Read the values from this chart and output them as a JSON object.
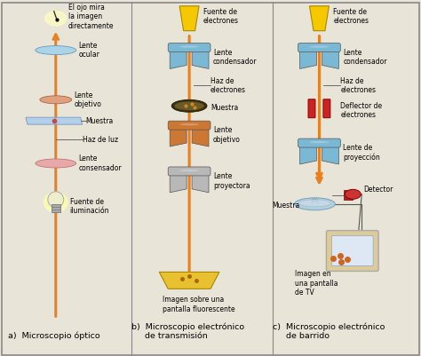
{
  "bg_color": "#e8e4d8",
  "orange": "#e88020",
  "blue_lens": "#7ab8d4",
  "blue_lens_dark": "#5599bb",
  "pink_lens": "#e8a0a0",
  "gray_lens": "#b8b8b8",
  "yellow_source": "#f5c800",
  "red_deflector": "#cc2222",
  "orange_lens": "#cc7733",
  "label_a": "a)  Microscopio óptico",
  "label_b": "b)  Microscopio electrónico\n     de transmisión",
  "label_c": "c)  Microscopio electrónico\n     de barrido",
  "col_a_labels": [
    "El ojo mira\nla imagen\ndirectamente",
    "Lente\nocular",
    "Lente\nobjetivo",
    "Muestra",
    "Haz de luz",
    "Lente\nconsensador",
    "Fuente de\niluminación"
  ],
  "col_b_labels": [
    "Fuente de\nelectrones",
    "Lente\ncondensador",
    "Haz de\nelectrones",
    "Muestra",
    "Lente\nobjetivo",
    "Lente\nproyectora",
    "Imagen sobre una\npantalla fluorescente"
  ],
  "col_c_labels": [
    "Fuente de\nelectrones",
    "Lente\ncondensador",
    "Haz de\nelectrones",
    "Deflector de\nelectrones",
    "Lente de\nproyección",
    "Detector",
    "Muestra",
    "Imagen en\nuna pantalla\nde TV"
  ]
}
